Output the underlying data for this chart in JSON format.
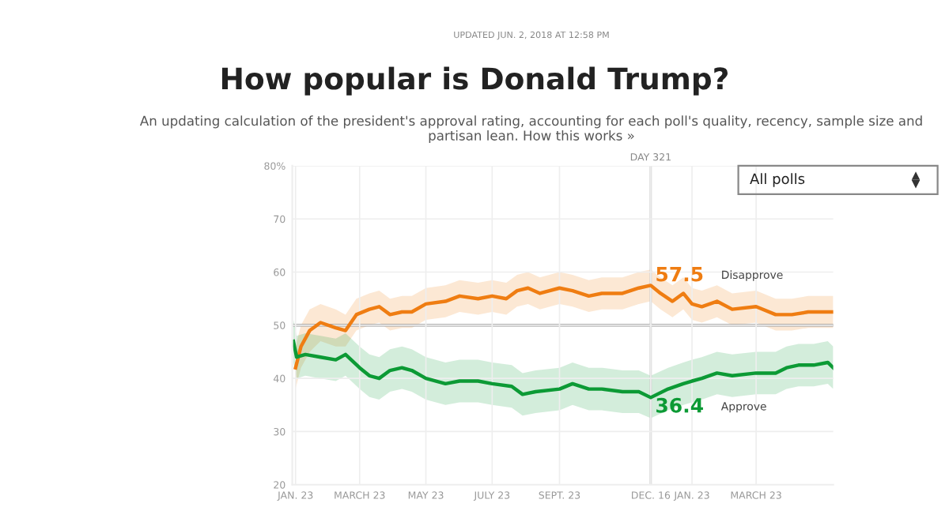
{
  "chart_data": {
    "type": "line",
    "title": "How popular is Donald Trump?",
    "subtitle": "An updating calculation of the president's approval rating, accounting for each poll's quality, recency, sample size and partisan lean. How this works »",
    "annotations": [
      "UPDATED JUN. 2, 2018 AT 12:58 PM",
      "All polls",
      {
        "text": "57.5",
        "x": "2017-12-16",
        "y": 57.5
      },
      {
        "text": "36.4",
        "x": "2017-12-16",
        "y": 36.4
      }
    ],
    "series": [
      {
        "name": "Disapprove",
        "color": "#ef7d12",
        "x": [
          "2017-01-23",
          "2017-01-28",
          "2017-02-05",
          "2017-02-15",
          "2017-03-01",
          "2017-03-10",
          "2017-03-20",
          "2017-04-01",
          "2017-04-10",
          "2017-04-20",
          "2017-05-01",
          "2017-05-10",
          "2017-05-23",
          "2017-06-10",
          "2017-06-23",
          "2017-07-10",
          "2017-07-23",
          "2017-08-05",
          "2017-08-15",
          "2017-08-25",
          "2017-09-05",
          "2017-09-23",
          "2017-10-05",
          "2017-10-20",
          "2017-11-01",
          "2017-11-20",
          "2017-12-05",
          "2017-12-16",
          "2017-12-25",
          "2018-01-05",
          "2018-01-15",
          "2018-01-23",
          "2018-02-01",
          "2018-02-15",
          "2018-03-01",
          "2018-03-23",
          "2018-04-10",
          "2018-04-25",
          "2018-05-10",
          "2018-06-02"
        ],
        "values": [
          42,
          46,
          49,
          50.5,
          49.5,
          49,
          52,
          53,
          53.5,
          52,
          52.5,
          52.5,
          54,
          54.5,
          55.5,
          55,
          55.5,
          55,
          56.5,
          57,
          56,
          57,
          56.5,
          55.5,
          56,
          56,
          57,
          57.5,
          56,
          54.5,
          56,
          54,
          53.5,
          54.5,
          53,
          53.5,
          52,
          52,
          52.5,
          52.5
        ],
        "lower": [
          38,
          42,
          45,
          47,
          46,
          46,
          49,
          50,
          50.5,
          49,
          49.5,
          49.5,
          51,
          51.5,
          52.5,
          52,
          52.5,
          52,
          53.5,
          54,
          53,
          54,
          53.5,
          52.5,
          53,
          53,
          54,
          54.5,
          53,
          51.5,
          53,
          51,
          50.5,
          51.5,
          50,
          50.5,
          49,
          49,
          49.5,
          49.5
        ],
        "upper": [
          46,
          50,
          53,
          54,
          53,
          52,
          55,
          56,
          56.5,
          55,
          55.5,
          55.5,
          57,
          57.5,
          58.5,
          58,
          58.5,
          58,
          59.5,
          60,
          59,
          60,
          59.5,
          58.5,
          59,
          59,
          60,
          60.5,
          59,
          57.5,
          59,
          57,
          56.5,
          57.5,
          56,
          56.5,
          55,
          55,
          55.5,
          55.5
        ]
      },
      {
        "name": "Approve",
        "color": "#0c9a35",
        "x": [
          "2017-01-21",
          "2017-01-24",
          "2017-02-01",
          "2017-02-15",
          "2017-03-01",
          "2017-03-10",
          "2017-03-23",
          "2017-04-01",
          "2017-04-10",
          "2017-04-20",
          "2017-05-01",
          "2017-05-10",
          "2017-05-23",
          "2017-06-10",
          "2017-06-23",
          "2017-07-10",
          "2017-07-23",
          "2017-08-10",
          "2017-08-20",
          "2017-09-01",
          "2017-09-23",
          "2017-10-05",
          "2017-10-20",
          "2017-11-01",
          "2017-11-20",
          "2017-12-05",
          "2017-12-16",
          "2018-01-01",
          "2018-01-15",
          "2018-01-23",
          "2018-02-01",
          "2018-02-15",
          "2018-03-01",
          "2018-03-23",
          "2018-04-10",
          "2018-04-20",
          "2018-05-01",
          "2018-05-15",
          "2018-05-28",
          "2018-06-02"
        ],
        "values": [
          47,
          44,
          44.5,
          44,
          43.5,
          44.5,
          42,
          40.5,
          40,
          41.5,
          42,
          41.5,
          40,
          39,
          39.5,
          39.5,
          39,
          38.5,
          37,
          37.5,
          38,
          39,
          38,
          38,
          37.5,
          37.5,
          36.4,
          38,
          39,
          39.5,
          40,
          41,
          40.5,
          41,
          41,
          42,
          42.5,
          42.5,
          43,
          42
        ],
        "lower": [
          43,
          40,
          40.5,
          40,
          39.5,
          40.5,
          38,
          36.5,
          36,
          37.5,
          38,
          37.5,
          36,
          35,
          35.5,
          35.5,
          35,
          34.5,
          33,
          33.5,
          34,
          35,
          34,
          34,
          33.5,
          33.5,
          32.5,
          34,
          35,
          35.5,
          36,
          37,
          36.5,
          37,
          37,
          38,
          38.5,
          38.5,
          39,
          38
        ],
        "upper": [
          51,
          48,
          48.5,
          48,
          47.5,
          48.5,
          46,
          44.5,
          44,
          45.5,
          46,
          45.5,
          44,
          43,
          43.5,
          43.5,
          43,
          42.5,
          41,
          41.5,
          42,
          43,
          42,
          42,
          41.5,
          41.5,
          40.5,
          42,
          43,
          43.5,
          44,
          45,
          44.5,
          45,
          45,
          46,
          46.5,
          46.5,
          47,
          46
        ]
      }
    ],
    "xlim": [
      "2017-01-20",
      "2018-06-02"
    ],
    "xticks": [
      {
        "value": "2017-01-23",
        "label": "JAN. 23"
      },
      {
        "value": "2017-03-23",
        "label": "MARCH 23"
      },
      {
        "value": "2017-05-23",
        "label": "MAY 23"
      },
      {
        "value": "2017-07-23",
        "label": "JULY 23"
      },
      {
        "value": "2017-09-23",
        "label": "SEPT. 23"
      },
      {
        "value": "2017-12-16",
        "label": "DEC. 16"
      },
      {
        "value": "2018-01-23",
        "label": "JAN. 23"
      },
      {
        "value": "2018-03-23",
        "label": "MARCH 23"
      }
    ],
    "ylim": [
      20,
      80
    ],
    "yticks": [
      20,
      30,
      40,
      50,
      60,
      70,
      {
        "value": 80,
        "label": "80%"
      }
    ],
    "ref_lines": [
      {
        "axis": "y",
        "value": 50,
        "color": "#999999"
      },
      {
        "axis": "x",
        "value": "2017-12-16",
        "label": "DAY 321",
        "color": "#cccccc"
      }
    ],
    "grid": true,
    "legend": false,
    "marker": "none",
    "line_style": "solid"
  }
}
